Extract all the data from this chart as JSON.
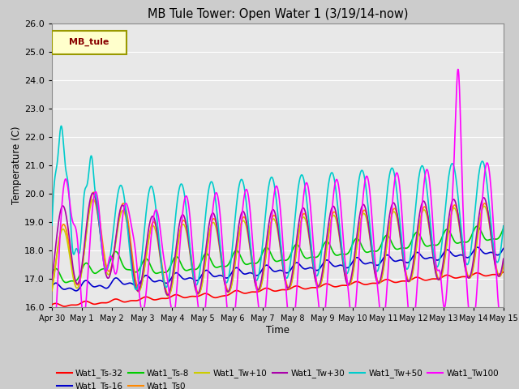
{
  "title": "MB Tule Tower: Open Water 1 (3/19/14-now)",
  "xlabel": "Time",
  "ylabel": "Temperature (C)",
  "ylim": [
    16.0,
    26.0
  ],
  "yticks": [
    16.0,
    17.0,
    18.0,
    19.0,
    20.0,
    21.0,
    22.0,
    23.0,
    24.0,
    25.0,
    26.0
  ],
  "xtick_labels": [
    "Apr 30",
    "May 1",
    "May 2",
    "May 3",
    "May 4",
    "May 5",
    "May 6",
    "May 7",
    "May 8",
    "May 9",
    "May 10",
    "May 11",
    "May 12",
    "May 13",
    "May 14",
    "May 15"
  ],
  "fig_bg": "#cccccc",
  "plot_bg": "#e8e8e8",
  "grid_color": "#ffffff",
  "colors": {
    "ts32": "#ff0000",
    "ts16": "#0000cc",
    "ts8": "#00cc00",
    "ts0": "#ff8800",
    "tw10": "#cccc00",
    "tw30": "#aa00aa",
    "tw50": "#00cccc",
    "tw100": "#ff00ff"
  },
  "legend_box_facecolor": "#ffffcc",
  "legend_box_edgecolor": "#999900",
  "legend_box_text": "MB_tule",
  "legend_box_text_color": "#880000",
  "n_days": 15
}
